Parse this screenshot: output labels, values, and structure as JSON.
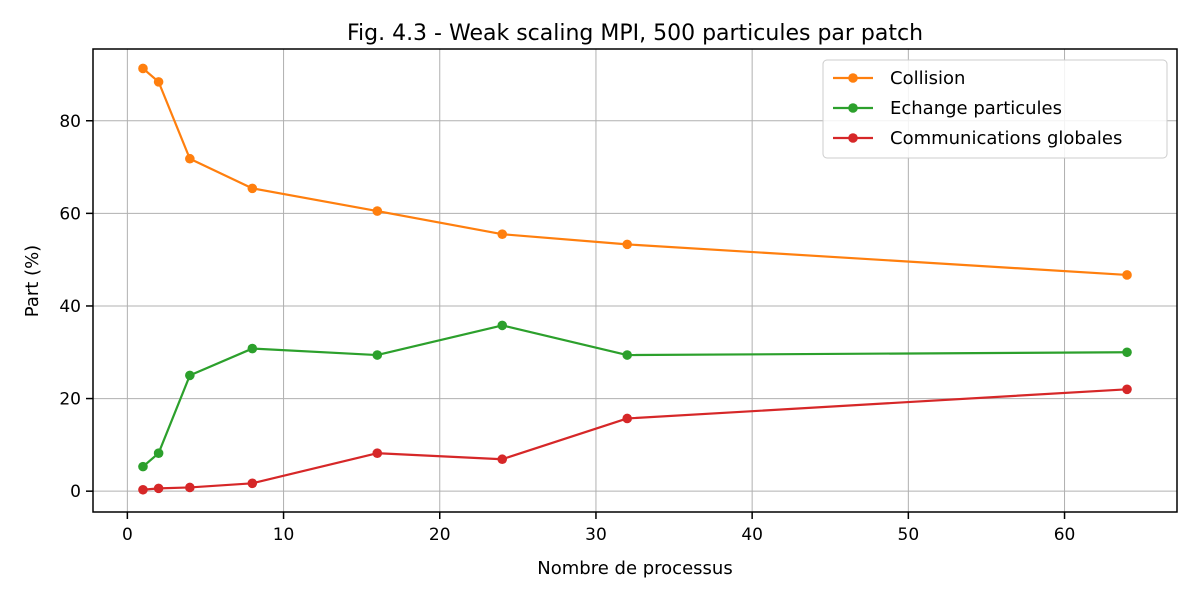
{
  "chart_data": {
    "type": "line",
    "title": "Fig. 4.3 - Weak scaling MPI, 500 particules par patch",
    "xlabel": "Nombre de processus",
    "ylabel": "Part (%)",
    "xlim": [
      -2.2,
      67.2
    ],
    "ylim": [
      -4.5,
      95.5
    ],
    "xticks": [
      0,
      10,
      20,
      30,
      40,
      50,
      60
    ],
    "yticks": [
      0,
      20,
      40,
      60,
      80
    ],
    "grid": true,
    "legend_position": "top-right",
    "x": [
      1,
      2,
      4,
      8,
      16,
      24,
      32,
      64
    ],
    "series": [
      {
        "name": "Collision",
        "color": "#ff7f0e",
        "values": [
          91.3,
          88.4,
          71.8,
          65.4,
          60.5,
          55.5,
          53.3,
          46.7
        ]
      },
      {
        "name": "Echange particules",
        "color": "#2ca02c",
        "values": [
          5.3,
          8.2,
          25.0,
          30.8,
          29.4,
          35.8,
          29.4,
          30.0
        ]
      },
      {
        "name": "Communications globales",
        "color": "#d62728",
        "values": [
          0.3,
          0.6,
          0.8,
          1.7,
          8.2,
          6.9,
          15.7,
          22.0
        ]
      }
    ]
  }
}
